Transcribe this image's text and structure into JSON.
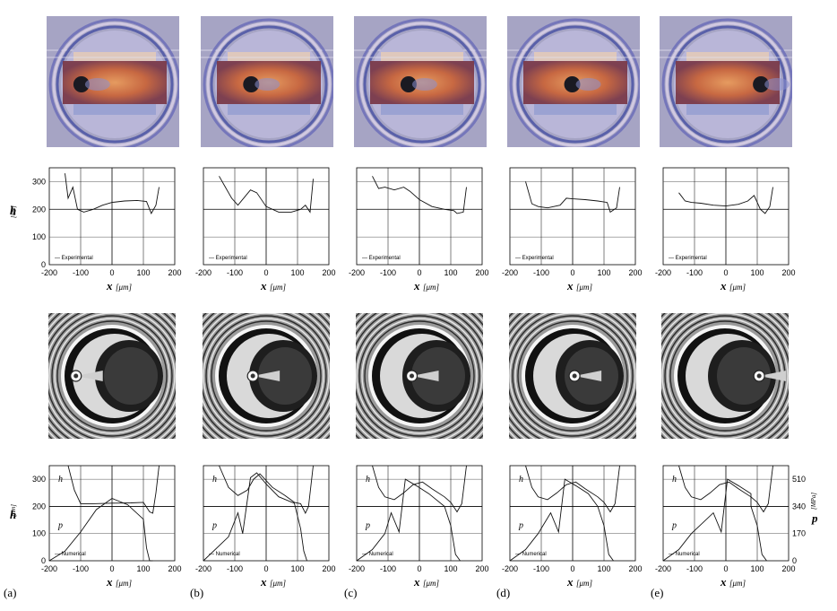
{
  "panels": [
    "(a)",
    "(b)",
    "(c)",
    "(d)",
    "(e)"
  ],
  "experimental_legend": "Experimental",
  "numerical_legend": "Numerical",
  "colors": {
    "stripe_orange": "#c8643a",
    "fringe_blue": "#8a8fd0",
    "background_lavender": "#a6a4c4",
    "numerical_dark": "#111111"
  },
  "chart_data": [
    {
      "type": "line",
      "name": "experimental film thickness",
      "ylabel": "h",
      "ylabel_unit": "[nm]",
      "xlabel": "x",
      "xlabel_unit": "[μm]",
      "xlim": [
        -200,
        200
      ],
      "ylim": [
        0,
        350
      ],
      "xticks": [
        "-200",
        "-100",
        "0",
        "100",
        "200"
      ],
      "yticks": [
        "0",
        "100",
        "200",
        "300"
      ],
      "series": [
        {
          "panel": "(a)",
          "x": [
            -150,
            -140,
            -125,
            -110,
            -90,
            -60,
            -30,
            0,
            40,
            80,
            110,
            125,
            140,
            150
          ],
          "y": [
            330,
            240,
            280,
            200,
            190,
            200,
            215,
            225,
            230,
            232,
            228,
            185,
            215,
            280
          ]
        },
        {
          "panel": "(b)",
          "x": [
            -150,
            -130,
            -110,
            -90,
            -50,
            -30,
            0,
            40,
            80,
            110,
            125,
            140,
            150
          ],
          "y": [
            320,
            280,
            240,
            215,
            270,
            260,
            210,
            190,
            190,
            200,
            215,
            190,
            310
          ]
        },
        {
          "panel": "(c)",
          "x": [
            -150,
            -130,
            -110,
            -80,
            -50,
            -30,
            0,
            40,
            80,
            110,
            120,
            140,
            150
          ],
          "y": [
            320,
            275,
            280,
            270,
            280,
            265,
            235,
            210,
            200,
            195,
            185,
            190,
            280
          ]
        },
        {
          "panel": "(d)",
          "x": [
            -150,
            -130,
            -110,
            -80,
            -40,
            -20,
            0,
            40,
            80,
            110,
            120,
            140,
            150
          ],
          "y": [
            300,
            220,
            210,
            205,
            215,
            240,
            238,
            235,
            230,
            225,
            190,
            205,
            280
          ]
        },
        {
          "panel": "(e)",
          "x": [
            -150,
            -130,
            -110,
            -80,
            -40,
            0,
            40,
            70,
            90,
            110,
            125,
            140,
            150
          ],
          "y": [
            260,
            230,
            225,
            222,
            215,
            212,
            218,
            230,
            250,
            200,
            185,
            210,
            280
          ]
        }
      ]
    },
    {
      "type": "line",
      "name": "numerical film thickness and pressure",
      "ylabel": "h",
      "ylabel_unit": "[nm]",
      "y2label": "p",
      "y2label_unit": "[MPa]",
      "xlabel": "x",
      "xlabel_unit": "[μm]",
      "xlim": [
        -200,
        200
      ],
      "ylim": [
        0,
        350
      ],
      "y2lim": [
        0,
        595
      ],
      "xticks": [
        "-200",
        "-100",
        "0",
        "100",
        "200"
      ],
      "yticks": [
        "0",
        "100",
        "200",
        "300"
      ],
      "y2ticks": [
        "0",
        "170",
        "340",
        "510"
      ],
      "curve_labels": [
        "h",
        "p"
      ],
      "series": [
        {
          "panel": "(a)",
          "name": "h",
          "x": [
            -140,
            -120,
            -100,
            -60,
            0,
            60,
            100,
            120,
            130,
            140,
            150
          ],
          "y": [
            350,
            260,
            210,
            210,
            212,
            213,
            215,
            180,
            175,
            250,
            350
          ]
        },
        {
          "panel": "(a)",
          "name": "p",
          "x": [
            -200,
            -150,
            -100,
            -50,
            0,
            50,
            100,
            110,
            120,
            130
          ],
          "y": [
            0,
            60,
            180,
            320,
            390,
            350,
            260,
            80,
            0,
            0
          ]
        },
        {
          "panel": "(b)",
          "name": "h",
          "x": [
            -150,
            -120,
            -90,
            -60,
            -40,
            -20,
            20,
            60,
            90,
            110,
            125,
            135,
            150
          ],
          "y": [
            350,
            270,
            240,
            260,
            300,
            320,
            270,
            240,
            215,
            210,
            175,
            200,
            350
          ]
        },
        {
          "panel": "(b)",
          "name": "p",
          "x": [
            -200,
            -120,
            -90,
            -75,
            -50,
            -30,
            0,
            40,
            90,
            110,
            120,
            130
          ],
          "y": [
            0,
            150,
            300,
            170,
            520,
            550,
            480,
            400,
            360,
            200,
            60,
            0
          ]
        }
      ]
    }
  ],
  "page_title": ""
}
